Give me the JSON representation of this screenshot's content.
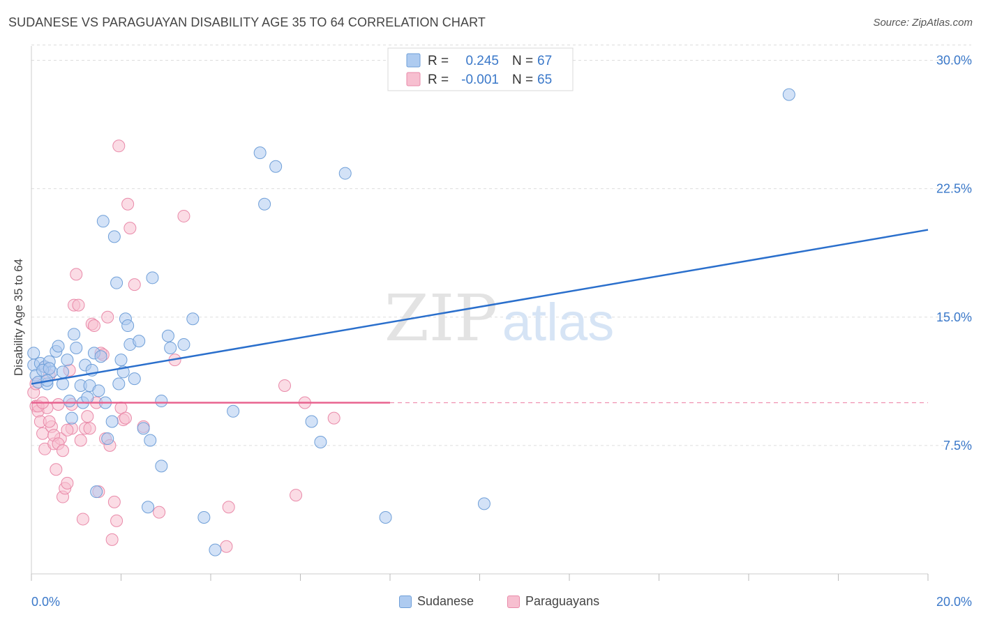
{
  "title": "SUDANESE VS PARAGUAYAN DISABILITY AGE 35 TO 64 CORRELATION CHART",
  "source": "Source: ZipAtlas.com",
  "watermark": {
    "zip": "ZIP",
    "atlas": "atlas"
  },
  "legend_top": {
    "rows": [
      {
        "r_label": "R =",
        "r_value": "0.245",
        "n_label": "N =",
        "n_value": "67"
      },
      {
        "r_label": "R =",
        "r_value": "-0.001",
        "n_label": "N =",
        "n_value": "65"
      }
    ]
  },
  "legend_bottom": {
    "items": [
      "Sudanese",
      "Paraguayans"
    ]
  },
  "colors": {
    "blue_fill": "#aecbf0",
    "blue_stroke": "#6f9fd8",
    "blue_line": "#2a6fcc",
    "pink_fill": "#f7bfd0",
    "pink_stroke": "#e98aa9",
    "pink_line": "#e8638f",
    "axis_text": "#3a78c9",
    "grid": "#dddddd"
  },
  "chart_data": {
    "type": "scatter",
    "title": "SUDANESE VS PARAGUAYAN DISABILITY AGE 35 TO 64 CORRELATION CHART",
    "xlabel": "",
    "ylabel": "Disability Age 35 to 64",
    "xlim": [
      0,
      20
    ],
    "ylim": [
      0,
      31
    ],
    "x_tick_labels": [
      "0.0%",
      "20.0%"
    ],
    "y_ticks": [
      7.5,
      15.0,
      22.5,
      30.0
    ],
    "y_tick_labels": [
      "7.5%",
      "15.0%",
      "22.5%",
      "30.0%"
    ],
    "grid": true,
    "legend_position": "top-center",
    "series": [
      {
        "name": "Sudanese",
        "r": 0.245,
        "n": 67,
        "trend": {
          "x": [
            0,
            20
          ],
          "y": [
            11.1,
            20.1
          ],
          "style": "solid"
        },
        "points": [
          [
            0.05,
            12.2
          ],
          [
            0.1,
            11.6
          ],
          [
            0.15,
            11.2
          ],
          [
            0.2,
            12.3
          ],
          [
            0.3,
            12.1
          ],
          [
            0.35,
            11.1
          ],
          [
            0.4,
            12.4
          ],
          [
            0.45,
            11.8
          ],
          [
            0.55,
            13.0
          ],
          [
            0.6,
            13.3
          ],
          [
            0.7,
            11.8
          ],
          [
            0.7,
            11.1
          ],
          [
            0.8,
            12.5
          ],
          [
            0.85,
            10.1
          ],
          [
            0.9,
            9.1
          ],
          [
            0.95,
            14.0
          ],
          [
            1.0,
            13.2
          ],
          [
            1.1,
            11.0
          ],
          [
            1.15,
            10.0
          ],
          [
            1.2,
            12.2
          ],
          [
            1.25,
            10.3
          ],
          [
            1.3,
            11.0
          ],
          [
            1.35,
            11.9
          ],
          [
            1.4,
            12.9
          ],
          [
            1.45,
            4.8
          ],
          [
            1.5,
            10.7
          ],
          [
            1.55,
            12.7
          ],
          [
            1.6,
            20.6
          ],
          [
            1.65,
            10.0
          ],
          [
            1.7,
            7.9
          ],
          [
            1.8,
            8.9
          ],
          [
            1.85,
            19.7
          ],
          [
            1.9,
            17.0
          ],
          [
            1.95,
            11.1
          ],
          [
            2.0,
            12.5
          ],
          [
            2.05,
            11.8
          ],
          [
            2.1,
            14.9
          ],
          [
            2.15,
            14.5
          ],
          [
            2.2,
            13.4
          ],
          [
            2.3,
            11.4
          ],
          [
            2.4,
            13.6
          ],
          [
            2.5,
            8.5
          ],
          [
            2.6,
            3.9
          ],
          [
            2.65,
            7.8
          ],
          [
            2.7,
            17.3
          ],
          [
            2.9,
            10.1
          ],
          [
            2.9,
            6.3
          ],
          [
            3.05,
            13.9
          ],
          [
            3.1,
            13.2
          ],
          [
            3.4,
            13.4
          ],
          [
            3.6,
            14.9
          ],
          [
            3.85,
            3.3
          ],
          [
            4.1,
            1.4
          ],
          [
            4.5,
            9.5
          ],
          [
            5.1,
            24.6
          ],
          [
            5.2,
            21.6
          ],
          [
            5.45,
            23.8
          ],
          [
            6.25,
            8.9
          ],
          [
            6.45,
            7.7
          ],
          [
            7.0,
            23.4
          ],
          [
            7.9,
            3.3
          ],
          [
            10.1,
            4.1
          ],
          [
            16.9,
            28.0
          ],
          [
            0.05,
            12.9
          ],
          [
            0.25,
            11.9
          ],
          [
            0.4,
            12.0
          ],
          [
            0.35,
            11.3
          ]
        ]
      },
      {
        "name": "Paraguayans",
        "r": -0.001,
        "n": 65,
        "trend": {
          "x": [
            0,
            8.0
          ],
          "y": [
            10.0,
            10.0
          ],
          "style": "solid",
          "dashed_extension_to": 20
        },
        "points": [
          [
            0.05,
            10.6
          ],
          [
            0.1,
            9.8
          ],
          [
            0.15,
            9.5
          ],
          [
            0.2,
            8.9
          ],
          [
            0.25,
            8.2
          ],
          [
            0.3,
            7.3
          ],
          [
            0.35,
            9.7
          ],
          [
            0.4,
            11.6
          ],
          [
            0.45,
            8.6
          ],
          [
            0.5,
            7.6
          ],
          [
            0.55,
            6.1
          ],
          [
            0.6,
            9.9
          ],
          [
            0.65,
            7.9
          ],
          [
            0.7,
            4.5
          ],
          [
            0.75,
            5.0
          ],
          [
            0.8,
            5.3
          ],
          [
            0.85,
            11.9
          ],
          [
            0.9,
            8.5
          ],
          [
            0.95,
            15.7
          ],
          [
            1.0,
            17.5
          ],
          [
            1.05,
            15.7
          ],
          [
            1.1,
            7.8
          ],
          [
            1.15,
            3.2
          ],
          [
            1.2,
            8.5
          ],
          [
            1.25,
            9.2
          ],
          [
            1.3,
            8.5
          ],
          [
            1.35,
            14.6
          ],
          [
            1.4,
            14.5
          ],
          [
            1.45,
            10.0
          ],
          [
            1.5,
            4.8
          ],
          [
            1.55,
            12.9
          ],
          [
            1.6,
            12.8
          ],
          [
            1.65,
            7.9
          ],
          [
            1.7,
            15.0
          ],
          [
            1.75,
            7.5
          ],
          [
            1.8,
            2.0
          ],
          [
            1.85,
            4.2
          ],
          [
            1.9,
            3.1
          ],
          [
            1.95,
            25.0
          ],
          [
            2.0,
            9.7
          ],
          [
            2.05,
            9.0
          ],
          [
            2.1,
            9.1
          ],
          [
            2.15,
            21.6
          ],
          [
            2.2,
            20.2
          ],
          [
            2.3,
            16.9
          ],
          [
            2.5,
            8.6
          ],
          [
            2.85,
            3.6
          ],
          [
            3.2,
            12.5
          ],
          [
            3.4,
            20.9
          ],
          [
            4.35,
            1.6
          ],
          [
            4.4,
            3.9
          ],
          [
            5.65,
            11.0
          ],
          [
            5.9,
            4.6
          ],
          [
            6.1,
            10.0
          ],
          [
            6.75,
            9.1
          ],
          [
            0.1,
            11.1
          ],
          [
            0.15,
            9.8
          ],
          [
            0.25,
            10.0
          ],
          [
            0.3,
            12.1
          ],
          [
            0.4,
            8.9
          ],
          [
            0.5,
            8.1
          ],
          [
            0.6,
            7.6
          ],
          [
            0.7,
            7.2
          ],
          [
            0.8,
            8.4
          ],
          [
            0.9,
            9.9
          ]
        ]
      }
    ]
  }
}
